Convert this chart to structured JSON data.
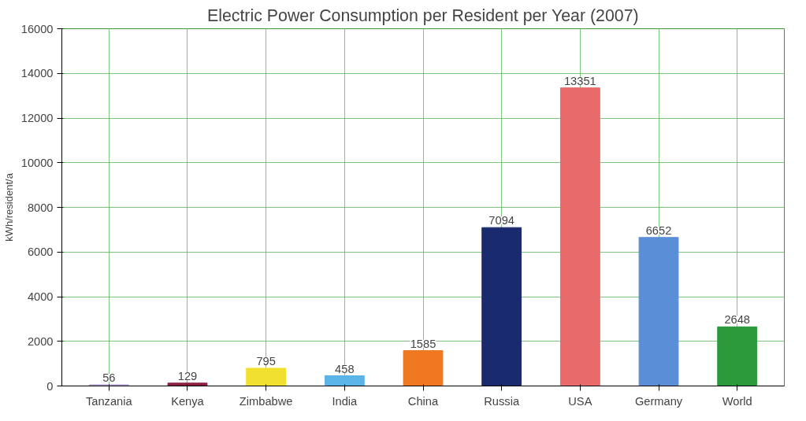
{
  "chart_data": {
    "type": "bar",
    "title": "Electric Power Consumption per Resident per Year (2007)",
    "ylabel": "kWh/resident/a",
    "categories": [
      "Tanzania",
      "Kenya",
      "Zimbabwe",
      "India",
      "China",
      "Russia",
      "USA",
      "Germany",
      "World"
    ],
    "values": [
      56,
      129,
      795,
      458,
      1585,
      7094,
      13351,
      6652,
      2648
    ],
    "colors": [
      "#b9a0d8",
      "#8b2040",
      "#f2e030",
      "#5ab4e8",
      "#f07820",
      "#1a2a6e",
      "#e86a6a",
      "#5a8fd8",
      "#2a9a3a"
    ],
    "ylim": [
      0,
      16000
    ],
    "yticks": [
      0,
      2000,
      4000,
      6000,
      8000,
      10000,
      12000,
      14000,
      16000
    ],
    "grid": true,
    "data_labels": true
  }
}
